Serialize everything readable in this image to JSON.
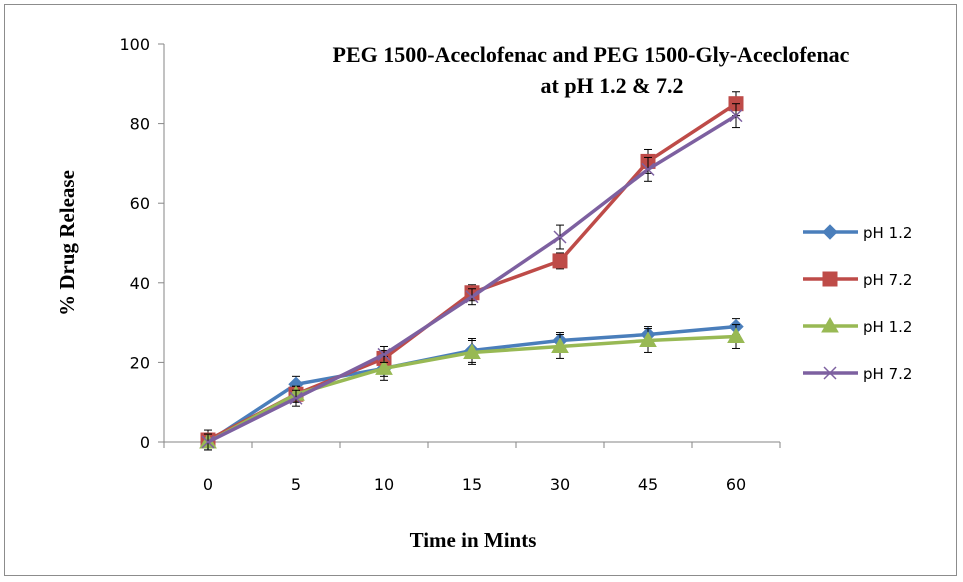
{
  "chart_data": {
    "type": "line",
    "title_lines": [
      "PEG 1500-Aceclofenac and PEG 1500-Gly-Aceclofenac",
      "at pH 1.2 & 7.2"
    ],
    "xlabel": "Time in Mints",
    "ylabel": "% Drug Release",
    "categories": [
      "0",
      "5",
      "10",
      "15",
      "30",
      "45",
      "60"
    ],
    "ylim": [
      0,
      100
    ],
    "yticks": [
      0,
      20,
      40,
      60,
      80,
      100
    ],
    "grid": false,
    "legend_position": "right",
    "series": [
      {
        "name": "pH 1.2",
        "color": "#4a7ebb",
        "marker": "diamond",
        "values": [
          0,
          14.5,
          18.5,
          23,
          25.5,
          27,
          29
        ],
        "errors": [
          2,
          2,
          2,
          3,
          2,
          2,
          2
        ]
      },
      {
        "name": "pH 7.2",
        "color": "#be4b48",
        "marker": "square",
        "values": [
          0.5,
          12,
          21,
          37.5,
          45.5,
          70.5,
          85
        ],
        "errors": [
          2.5,
          2,
          2,
          2,
          2,
          3,
          3
        ]
      },
      {
        "name": "pH 1.2",
        "color": "#98b954",
        "marker": "triangle",
        "values": [
          0,
          12,
          18.5,
          22.5,
          24,
          25.5,
          26.5
        ],
        "errors": [
          2,
          2,
          3,
          3,
          3,
          3,
          3
        ]
      },
      {
        "name": "pH 7.2",
        "color": "#7d60a0",
        "marker": "x",
        "values": [
          0,
          11,
          22,
          36.5,
          51.5,
          68.5,
          82
        ],
        "errors": [
          2,
          2,
          2,
          2,
          3,
          3,
          3
        ]
      }
    ]
  }
}
